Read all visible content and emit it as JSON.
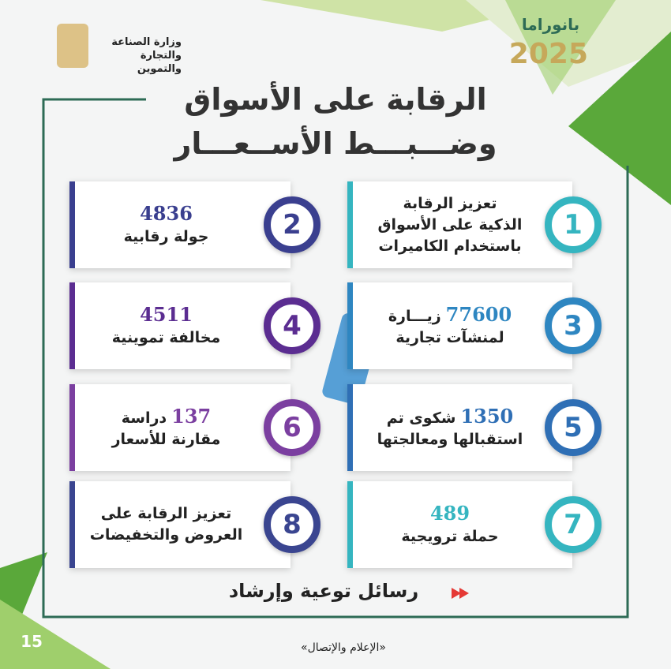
{
  "header": {
    "ministry": [
      "وزارة الصناعة",
      "والتجارة والتموين"
    ],
    "brand": "بانوراما",
    "year": "2025",
    "title": [
      "الرقابة على الأسواق",
      "وضـــبـــط الأســعـــار"
    ]
  },
  "cards": [
    {
      "index": "1",
      "lines": [
        "تعزيز الرقابة",
        "الذكية على الأسواق",
        "باستخدام الكاميرات"
      ]
    },
    {
      "index": "2",
      "value": "4836",
      "lines": [
        "جولة رقابية"
      ]
    },
    {
      "index": "3",
      "value": "77600",
      "lines": [
        "زيـــارة",
        "لمنشآت تجارية"
      ]
    },
    {
      "index": "4",
      "value": "4511",
      "lines": [
        "مخالفة تموينية"
      ]
    },
    {
      "index": "5",
      "value": "1350",
      "lines": [
        "شكوى تم",
        "استقبالها ومعالجتها"
      ]
    },
    {
      "index": "6",
      "value": "137",
      "lines": [
        "دراسة",
        "مقارنة للأسعار"
      ]
    },
    {
      "index": "7",
      "value": "489",
      "lines": [
        "حملة ترويجية"
      ]
    },
    {
      "index": "8",
      "lines": [
        "تعزيز الرقابة على",
        "العروض والتخفيضات"
      ]
    }
  ],
  "footer": {
    "campaign": "رسائل توعية وإرشاد",
    "page": "15",
    "department": "«الإعلام والإتصال»"
  }
}
